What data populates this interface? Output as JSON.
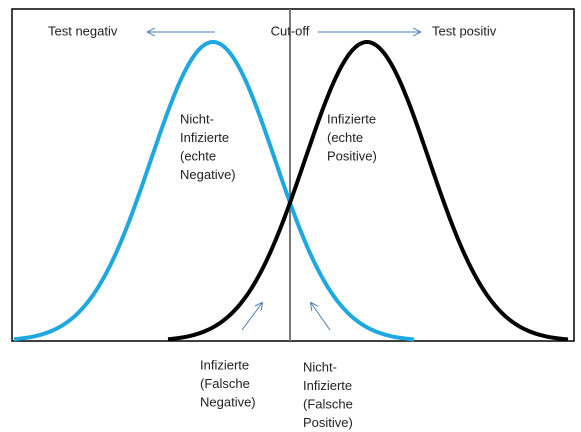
{
  "header": {
    "left": "Test negativ",
    "center": "Cut-off",
    "right": "Test positiv"
  },
  "labels": {
    "true_negatives": [
      "Nicht-",
      "Infizierte",
      "(echte",
      "Negative)"
    ],
    "true_positives": [
      "Infizierte",
      "(echte",
      "Positive)"
    ],
    "false_negatives": [
      "Infizierte",
      "(Falsche",
      "Negative)"
    ],
    "false_positives": [
      "Nicht-",
      "Infizierte",
      "(Falsche",
      "Positive)"
    ]
  }
}
